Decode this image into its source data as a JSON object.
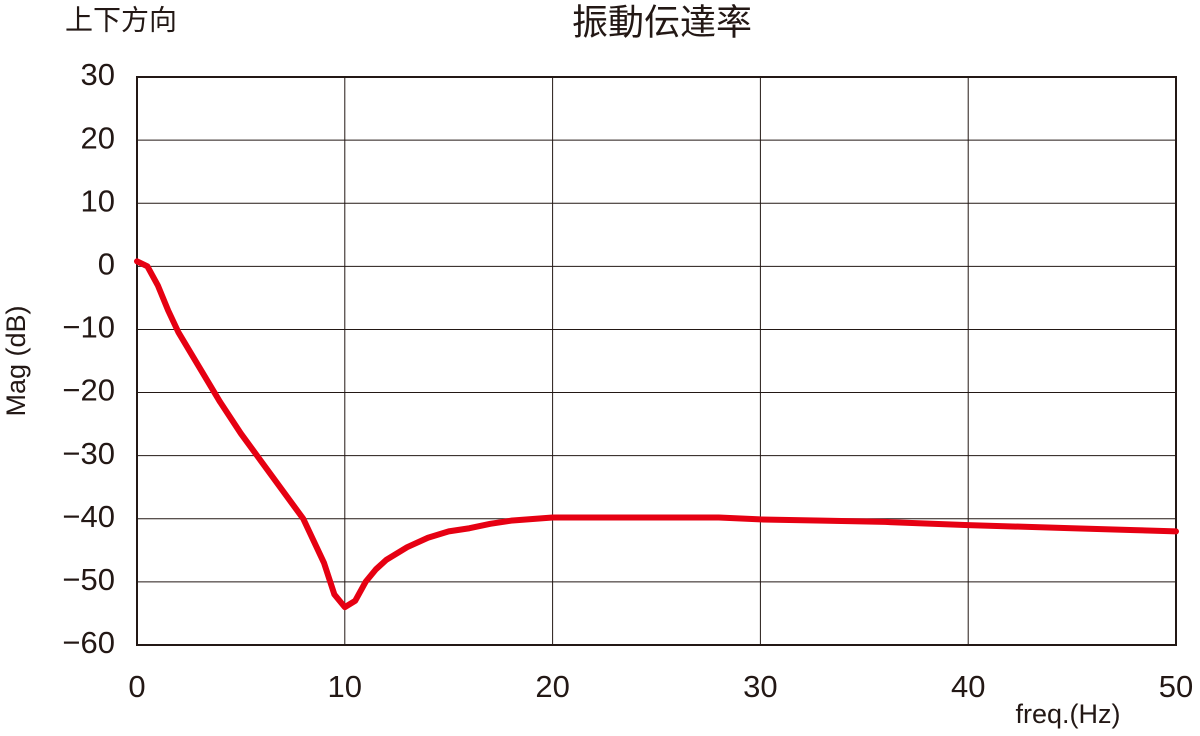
{
  "chart_data": {
    "type": "line",
    "title": "振動伝達率",
    "subtitle": "上下方向",
    "x_label": "freq.(Hz)",
    "y_label": "Mag (dB)",
    "x": [
      0,
      0.5,
      1,
      1.5,
      2,
      3,
      4,
      5,
      6,
      7,
      8,
      9,
      9.5,
      10,
      10.5,
      11,
      11.5,
      12,
      13,
      14,
      15,
      16,
      17,
      18,
      20,
      25,
      28,
      30,
      33,
      36,
      40,
      45,
      48,
      50
    ],
    "series": [
      {
        "name": "Mag",
        "color": "#e60012",
        "values": [
          0.8,
          0,
          -3,
          -7,
          -10.5,
          -16,
          -21.5,
          -26.5,
          -31,
          -35.5,
          -40,
          -47,
          -52,
          -54,
          -53,
          -50,
          -48,
          -46.5,
          -44.5,
          -43,
          -42,
          -41.5,
          -40.8,
          -40.3,
          -39.8,
          -39.8,
          -39.8,
          -40.1,
          -40.3,
          -40.5,
          -41,
          -41.5,
          -41.8,
          -42
        ]
      }
    ],
    "xlim": [
      0,
      50
    ],
    "xticks": [
      0,
      10,
      20,
      30,
      40,
      50
    ],
    "ylim": [
      -60,
      30
    ],
    "yticks": [
      {
        "value": -60,
        "label": "−60"
      },
      {
        "value": -50,
        "label": "−50"
      },
      {
        "value": -40,
        "label": "−40"
      },
      {
        "value": -30,
        "label": "−30"
      },
      {
        "value": -20,
        "label": "−20"
      },
      {
        "value": -10,
        "label": "−10"
      },
      0,
      10,
      20,
      30
    ],
    "grid": true
  }
}
